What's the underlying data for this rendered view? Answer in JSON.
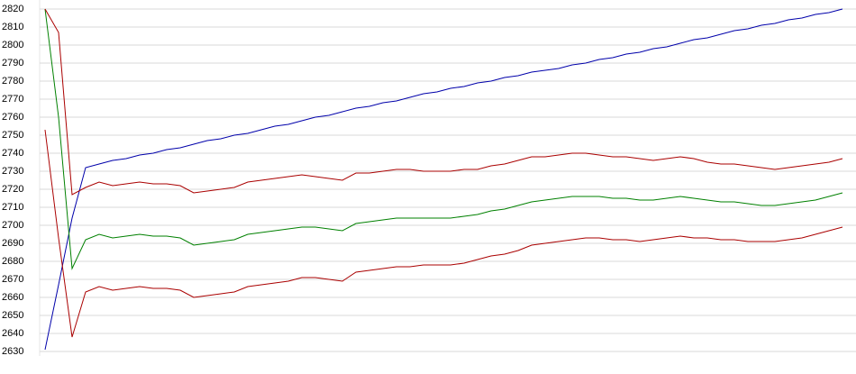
{
  "chart_data": {
    "type": "line",
    "categories": [
      null,
      null,
      null,
      null,
      null,
      null,
      null,
      null,
      null,
      null,
      null,
      null,
      null,
      null,
      null,
      null,
      null,
      null,
      null,
      null,
      null,
      null,
      null,
      null,
      null,
      null,
      null,
      null,
      null,
      null,
      null,
      null,
      null,
      null,
      null,
      null,
      null,
      null,
      null,
      null,
      null,
      null,
      null,
      null,
      null,
      null,
      null,
      null,
      null,
      null,
      null,
      null,
      null,
      null,
      null,
      null,
      null,
      null,
      null,
      null
    ],
    "ylim": [
      2630,
      2820
    ],
    "yticks": [
      2630,
      2640,
      2650,
      2660,
      2670,
      2680,
      2690,
      2700,
      2710,
      2720,
      2730,
      2740,
      2750,
      2760,
      2770,
      2780,
      2790,
      2800,
      2810,
      2820
    ],
    "grid": true,
    "series": [
      {
        "color": "#0000aa",
        "values": [
          2631,
          2667,
          2704,
          2732,
          2734,
          2736,
          2737,
          2739,
          2740,
          2742,
          2743,
          2745,
          2747,
          2748,
          2750,
          2751,
          2753,
          2755,
          2756,
          2758,
          2760,
          2761,
          2763,
          2765,
          2766,
          2768,
          2769,
          2771,
          2773,
          2774,
          2776,
          2777,
          2779,
          2780,
          2782,
          2783,
          2785,
          2786,
          2787,
          2789,
          2790,
          2792,
          2793,
          2795,
          2796,
          2798,
          2799,
          2801,
          2803,
          2804,
          2806,
          2808,
          2809,
          2811,
          2812,
          2814,
          2815,
          2817,
          2818,
          2820
        ]
      },
      {
        "color": "#008000",
        "values": [
          2820,
          2760,
          2676,
          2692,
          2695,
          2693,
          2694,
          2695,
          2694,
          2694,
          2693,
          2689,
          2690,
          2691,
          2692,
          2695,
          2696,
          2697,
          2698,
          2699,
          2699,
          2698,
          2697,
          2701,
          2702,
          2703,
          2704,
          2704,
          2704,
          2704,
          2704,
          2705,
          2706,
          2708,
          2709,
          2711,
          2713,
          2714,
          2715,
          2716,
          2716,
          2716,
          2715,
          2715,
          2714,
          2714,
          2715,
          2716,
          2715,
          2714,
          2713,
          2713,
          2712,
          2711,
          2711,
          2712,
          2713,
          2714,
          2716,
          2718
        ]
      },
      {
        "color": "#aa0000",
        "values": [
          2820,
          2807,
          2717,
          2721,
          2724,
          2722,
          2723,
          2724,
          2723,
          2723,
          2722,
          2718,
          2719,
          2720,
          2721,
          2724,
          2725,
          2726,
          2727,
          2728,
          2727,
          2726,
          2725,
          2729,
          2729,
          2730,
          2731,
          2731,
          2730,
          2730,
          2730,
          2731,
          2731,
          2733,
          2734,
          2736,
          2738,
          2738,
          2739,
          2740,
          2740,
          2739,
          2738,
          2738,
          2737,
          2736,
          2737,
          2738,
          2737,
          2735,
          2734,
          2734,
          2733,
          2732,
          2731,
          2732,
          2733,
          2734,
          2735,
          2737
        ]
      },
      {
        "color": "#aa0000",
        "values": [
          2753,
          2693,
          2638,
          2663,
          2666,
          2664,
          2665,
          2666,
          2665,
          2665,
          2664,
          2660,
          2661,
          2662,
          2663,
          2666,
          2667,
          2668,
          2669,
          2671,
          2671,
          2670,
          2669,
          2674,
          2675,
          2676,
          2677,
          2677,
          2678,
          2678,
          2678,
          2679,
          2681,
          2683,
          2684,
          2686,
          2689,
          2690,
          2691,
          2692,
          2693,
          2693,
          2692,
          2692,
          2691,
          2692,
          2693,
          2694,
          2693,
          2693,
          2692,
          2692,
          2691,
          2691,
          2691,
          2692,
          2693,
          2695,
          2697,
          2699
        ]
      }
    ]
  }
}
